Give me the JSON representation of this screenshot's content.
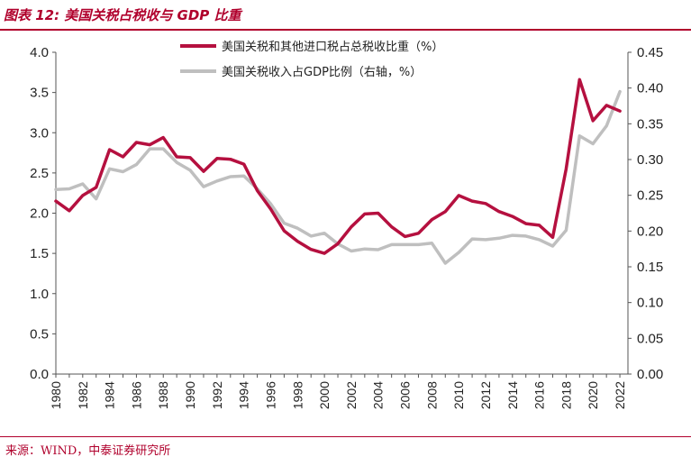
{
  "header": {
    "title": "图表 12:  美国关税占税收与 GDP 比重"
  },
  "footer": {
    "source": "来源：WIND，中泰证券研究所"
  },
  "colors": {
    "accent": "#b0002c",
    "series1": "#b5103f",
    "series2": "#bfbfbf"
  },
  "chart_data": {
    "type": "line",
    "grid": false,
    "legend_placement": "top-center",
    "x": [
      1980,
      1981,
      1982,
      1983,
      1984,
      1985,
      1986,
      1987,
      1988,
      1989,
      1990,
      1991,
      1992,
      1993,
      1994,
      1995,
      1996,
      1997,
      1998,
      1999,
      2000,
      2001,
      2002,
      2003,
      2004,
      2005,
      2006,
      2007,
      2008,
      2009,
      2010,
      2011,
      2012,
      2013,
      2014,
      2015,
      2016,
      2017,
      2018,
      2019,
      2020,
      2021,
      2022
    ],
    "x_tick_labels": [
      "1980",
      "1982",
      "1984",
      "1986",
      "1988",
      "1990",
      "1992",
      "1994",
      "1996",
      "1998",
      "2000",
      "2002",
      "2004",
      "2006",
      "2008",
      "2010",
      "2012",
      "2014",
      "2016",
      "2018",
      "2020",
      "2022"
    ],
    "y_left": {
      "range": [
        0,
        4.0
      ],
      "ticks": [
        "0.0",
        "0.5",
        "1.0",
        "1.5",
        "2.0",
        "2.5",
        "3.0",
        "3.5",
        "4.0"
      ]
    },
    "y_right": {
      "range": [
        0,
        0.45
      ],
      "ticks": [
        "0.00",
        "0.05",
        "0.10",
        "0.15",
        "0.20",
        "0.25",
        "0.30",
        "0.35",
        "0.40",
        "0.45"
      ]
    },
    "series": [
      {
        "name": "美国关税和其他进口税占总税收比重（%）",
        "axis": "left",
        "values": [
          2.15,
          2.03,
          2.22,
          2.32,
          2.79,
          2.7,
          2.88,
          2.85,
          2.94,
          2.7,
          2.69,
          2.52,
          2.68,
          2.67,
          2.61,
          2.28,
          2.05,
          1.78,
          1.65,
          1.55,
          1.5,
          1.62,
          1.83,
          1.99,
          2.0,
          1.83,
          1.71,
          1.75,
          1.92,
          2.02,
          2.22,
          2.15,
          2.12,
          2.02,
          1.96,
          1.87,
          1.85,
          1.7,
          2.55,
          3.66,
          3.15,
          3.34,
          3.27
        ]
      },
      {
        "name": "美国关税收入占GDP比例（右轴，%）",
        "axis": "right",
        "values": [
          0.258,
          0.259,
          0.266,
          0.245,
          0.287,
          0.283,
          0.293,
          0.315,
          0.315,
          0.296,
          0.285,
          0.262,
          0.27,
          0.276,
          0.277,
          0.259,
          0.238,
          0.211,
          0.204,
          0.193,
          0.197,
          0.182,
          0.172,
          0.175,
          0.174,
          0.181,
          0.181,
          0.181,
          0.183,
          0.155,
          0.17,
          0.189,
          0.188,
          0.19,
          0.194,
          0.193,
          0.188,
          0.179,
          0.201,
          0.333,
          0.322,
          0.347,
          0.395
        ]
      }
    ]
  }
}
